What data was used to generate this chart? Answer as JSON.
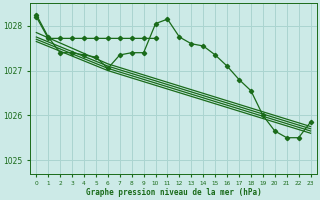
{
  "background_color": "#cceae7",
  "grid_color": "#aad4d0",
  "line_color": "#1a6b1a",
  "text_color": "#1a6b1a",
  "xlabel": "Graphe pression niveau de la mer (hPa)",
  "xlim": [
    -0.5,
    23.5
  ],
  "ylim": [
    1024.7,
    1028.5
  ],
  "yticks": [
    1025,
    1026,
    1027,
    1028
  ],
  "xticks": [
    0,
    1,
    2,
    3,
    4,
    5,
    6,
    7,
    8,
    9,
    10,
    11,
    12,
    13,
    14,
    15,
    16,
    17,
    18,
    19,
    20,
    21,
    22,
    23
  ],
  "main_line_x": [
    0,
    1,
    2,
    3,
    4,
    5,
    6,
    7,
    8,
    9,
    10,
    11,
    12,
    13,
    14,
    15,
    16,
    17,
    18,
    19,
    20,
    21,
    22,
    23
  ],
  "main_line_y": [
    1028.25,
    1027.75,
    1027.4,
    1027.4,
    1027.35,
    1027.3,
    1027.05,
    1027.35,
    1027.4,
    1027.4,
    1028.05,
    1028.15,
    1027.75,
    1027.6,
    1027.55,
    1027.35,
    1027.1,
    1026.8,
    1026.55,
    1026.0,
    1025.65,
    1025.5,
    1025.5,
    1025.85
  ],
  "trend1_x": [
    0,
    6,
    23
  ],
  "trend1_y": [
    1027.85,
    1027.15,
    1025.75
  ],
  "trend2_x": [
    0,
    6,
    23
  ],
  "trend2_y": [
    1027.75,
    1027.1,
    1025.7
  ],
  "trend3_x": [
    0,
    6,
    23
  ],
  "trend3_y": [
    1027.7,
    1027.05,
    1025.65
  ],
  "trend4_x": [
    0,
    6,
    23
  ],
  "trend4_y": [
    1027.65,
    1027.0,
    1025.6
  ],
  "flat_line_x": [
    0,
    1,
    2,
    3,
    4,
    5,
    6,
    7,
    8,
    9,
    10
  ],
  "flat_line_y": [
    1028.2,
    1027.72,
    1027.72,
    1027.72,
    1027.72,
    1027.72,
    1027.72,
    1027.72,
    1027.72,
    1027.72,
    1027.72
  ]
}
